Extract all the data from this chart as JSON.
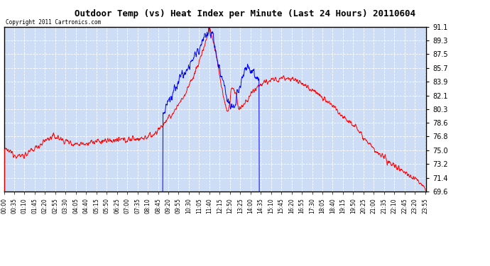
{
  "title": "Outdoor Temp (vs) Heat Index per Minute (Last 24 Hours) 20110604",
  "copyright": "Copyright 2011 Cartronics.com",
  "y_min": 69.6,
  "y_max": 91.1,
  "y_ticks": [
    91.1,
    89.3,
    87.5,
    85.7,
    83.9,
    82.1,
    80.3,
    78.6,
    76.8,
    75.0,
    73.2,
    71.4,
    69.6
  ],
  "bg_color": "#ffffff",
  "plot_bg_color": "#ccddf5",
  "grid_color": "#ffffff",
  "line_color_red": "#ff0000",
  "line_color_blue": "#0000ff",
  "minutes_per_day": 1440
}
